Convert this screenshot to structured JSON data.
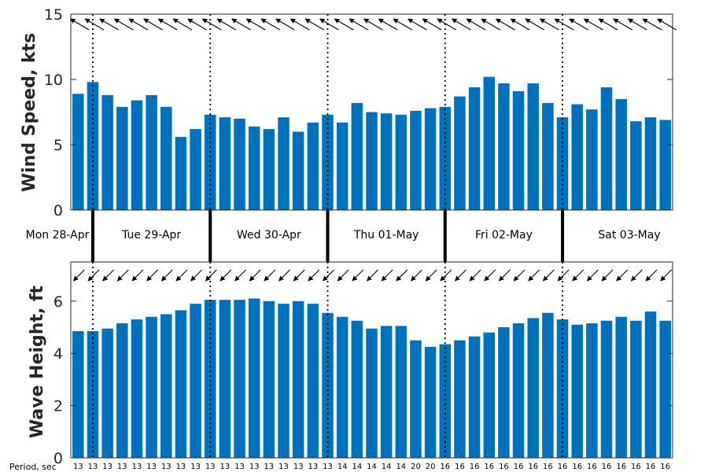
{
  "colors": {
    "bar": "#0072bd",
    "arrow": "#000000",
    "axis": "#262626",
    "divider": "#000000"
  },
  "icons": {
    "wind_arrow": "arrow-icon",
    "wave_arrow": "arrow-icon"
  },
  "chart_data": [
    {
      "type": "bar",
      "panel": "wind",
      "ylabel": "Wind Speed, kts",
      "ylim": [
        0,
        15
      ],
      "yticks": [
        0,
        5,
        10,
        15
      ],
      "grid": false,
      "values": [
        8.9,
        9.8,
        8.8,
        7.9,
        8.4,
        8.8,
        7.9,
        5.6,
        6.2,
        7.3,
        7.1,
        7.0,
        6.4,
        6.2,
        7.1,
        6.0,
        6.7,
        7.3,
        6.7,
        8.2,
        7.5,
        7.4,
        7.3,
        7.6,
        7.8,
        7.9,
        8.7,
        9.4,
        10.2,
        9.7,
        9.1,
        9.7,
        8.2,
        7.1,
        8.1,
        7.7,
        9.4,
        8.5,
        6.8,
        7.1,
        6.9
      ],
      "direction_arrows": "pointing up-left (from WNW) at each bar"
    },
    {
      "type": "bar",
      "panel": "wave",
      "ylabel": "Wave Height, ft",
      "ylim": [
        0,
        7.5
      ],
      "yticks": [
        0,
        2,
        4,
        6
      ],
      "grid": false,
      "values": [
        4.85,
        4.85,
        4.95,
        5.15,
        5.3,
        5.4,
        5.5,
        5.65,
        5.9,
        6.05,
        6.05,
        6.05,
        6.1,
        6.0,
        5.9,
        6.0,
        5.9,
        5.55,
        5.4,
        5.25,
        4.95,
        5.05,
        5.05,
        4.5,
        4.25,
        4.35,
        4.5,
        4.65,
        4.8,
        5.0,
        5.15,
        5.35,
        5.55,
        5.3,
        5.1,
        5.15,
        5.25,
        5.4,
        5.25,
        5.6,
        5.25
      ],
      "direction_arrows": "pointing down-left (from NE) at each bar"
    }
  ],
  "days": [
    "Mon 28-Apr",
    "Tue 29-Apr",
    "Wed 30-Apr",
    "Thu 01-May",
    "Fri 02-May",
    "Sat 03-May"
  ],
  "day_start_index": [
    0,
    2,
    10,
    18,
    26,
    34
  ],
  "period": {
    "title": "Period, sec",
    "values": [
      "13",
      "13",
      "13",
      "13",
      "13",
      "13",
      "13",
      "13",
      "13",
      "13",
      "13",
      "13",
      "13",
      "13",
      "13",
      "13",
      "13",
      "13",
      "14",
      "14",
      "14",
      "14",
      "14",
      "20",
      "20",
      "16",
      "16",
      "16",
      "16",
      "16",
      "16",
      "16",
      "16",
      "16",
      "16",
      "16",
      "16",
      "16",
      "16",
      "16",
      "16"
    ]
  }
}
